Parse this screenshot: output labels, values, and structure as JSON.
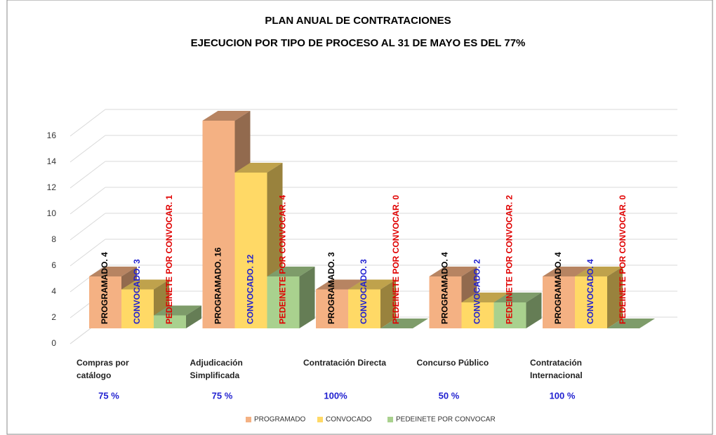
{
  "chart_data": {
    "type": "bar3d",
    "title": "PLAN ANUAL DE CONTRATACIONES",
    "subtitle": "EJECUCION POR TIPO DE PROCESO AL 31 DE MAYO ES DEL 77%",
    "categories": [
      "Compras por catálogo",
      "Adjudicación Simplificada",
      "Contratación Directa",
      "Concurso Público",
      "Contratación Internacional"
    ],
    "percent_labels": [
      "75 %",
      "75 %",
      "100%",
      "50 %",
      "100 %"
    ],
    "series": [
      {
        "name": "PROGRAMADO",
        "color": "#f4b183",
        "label_color": "#000000",
        "values": [
          4,
          16,
          3,
          4,
          4
        ],
        "value_labels": [
          "PROGRAMADO. 4",
          "PROGRAMADO. 16",
          "PROGRAMADO. 3",
          "PROGRAMADO. 4",
          "PROGRAMADO. 4"
        ]
      },
      {
        "name": "CONVOCADO",
        "color": "#ffd966",
        "label_color": "#1f1fd0",
        "values": [
          3,
          12,
          3,
          2,
          4
        ],
        "value_labels": [
          "CONVOCADO. 3",
          "CONVOCADO. 12",
          "CONVOCADO. 3",
          "CONVOCADO. 2",
          "CONVOCADO. 4"
        ]
      },
      {
        "name": "PEDEINETE POR CONVOCAR",
        "color": "#a9d18e",
        "label_color": "#e00000",
        "values": [
          1,
          4,
          0,
          2,
          0
        ],
        "value_labels": [
          "PEDEINETE POR CONVOCAR. 1",
          "PEDEINETE POR CONVOCAR. 4",
          "PEDEINETE POR CONVOCAR. 0",
          "PEDEINETE POR CONVOCAR. 2",
          "PEDEINETE POR CONVOCAR. 0"
        ]
      }
    ],
    "ylim": [
      0,
      18
    ],
    "yticks": [
      0,
      2,
      4,
      6,
      8,
      10,
      12,
      14,
      16
    ],
    "grid": true,
    "legend": "bottom"
  }
}
